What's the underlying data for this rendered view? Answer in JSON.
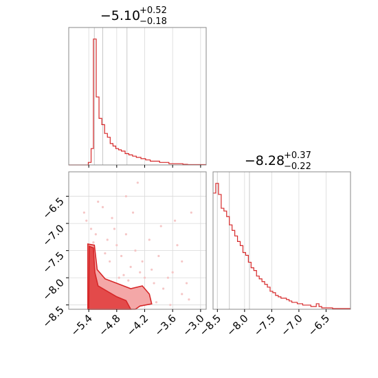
{
  "chart_data": [
    {
      "type": "histogram",
      "panel": "top-left",
      "title": {
        "value": "−5.10",
        "upper": "+0.52",
        "lower": "−0.18"
      },
      "xlim": [
        -5.83,
        -2.88
      ],
      "x_ticks": [
        -5.4,
        -4.8,
        -4.2,
        -3.6,
        -3.0
      ],
      "x_tick_labels": [
        "−5.4",
        "−4.8",
        "−4.2",
        "−3.6",
        "−3.0"
      ],
      "quantile_lines": [
        -5.28,
        -5.1,
        -4.58
      ],
      "bin_edges": [
        -5.83,
        -5.41,
        -5.35,
        -5.3,
        -5.24,
        -5.18,
        -5.12,
        -5.06,
        -5.0,
        -4.94,
        -4.88,
        -4.82,
        -4.76,
        -4.7,
        -4.62,
        -4.54,
        -4.46,
        -4.38,
        -4.28,
        -4.18,
        -4.08,
        -3.98,
        -3.88,
        -3.78,
        -3.68,
        -3.58,
        -3.48,
        -3.38,
        -3.28,
        -2.88
      ],
      "counts": [
        0,
        2,
        13,
        100,
        54,
        37,
        32,
        25,
        22,
        17,
        15,
        13,
        12,
        11,
        9,
        8,
        7,
        6,
        5,
        4,
        3,
        3,
        2,
        2,
        1,
        1,
        1,
        0.5,
        0.3
      ],
      "color": "#d62728"
    },
    {
      "type": "contour",
      "panel": "bottom-left",
      "xlim": [
        -5.83,
        -2.88
      ],
      "ylim": [
        -8.58,
        -6.05
      ],
      "x_ticks": [
        -5.4,
        -4.8,
        -4.2,
        -3.6,
        -3.0
      ],
      "x_tick_labels": [
        "−5.4",
        "−4.8",
        "−4.2",
        "−3.6",
        "−3.0"
      ],
      "y_ticks": [
        -6.5,
        -7.0,
        -7.5,
        -8.0,
        -8.5
      ],
      "y_tick_labels": [
        "−6.5",
        "−7.0",
        "−7.5",
        "−8.0",
        "−8.5"
      ],
      "inner_region": [
        [
          -5.39,
          -7.42
        ],
        [
          -5.3,
          -7.45
        ],
        [
          -5.27,
          -7.9
        ],
        [
          -5.2,
          -8.15
        ],
        [
          -5.0,
          -8.25
        ],
        [
          -4.8,
          -8.35
        ],
        [
          -4.6,
          -8.42
        ],
        [
          -4.5,
          -8.58
        ],
        [
          -5.4,
          -8.58
        ]
      ],
      "outer_region": [
        [
          -5.42,
          -7.38
        ],
        [
          -5.28,
          -7.4
        ],
        [
          -5.22,
          -7.85
        ],
        [
          -5.05,
          -8.02
        ],
        [
          -4.8,
          -8.1
        ],
        [
          -4.5,
          -8.2
        ],
        [
          -4.25,
          -8.15
        ],
        [
          -4.1,
          -8.3
        ],
        [
          -4.05,
          -8.48
        ],
        [
          -4.3,
          -8.52
        ],
        [
          -4.4,
          -8.58
        ],
        [
          -5.42,
          -8.58
        ]
      ],
      "scatter_points": [
        [
          -5.5,
          -6.8
        ],
        [
          -5.45,
          -6.95
        ],
        [
          -5.35,
          -7.1
        ],
        [
          -5.25,
          -7.2
        ],
        [
          -5.1,
          -6.7
        ],
        [
          -5.0,
          -7.3
        ],
        [
          -4.9,
          -6.9
        ],
        [
          -4.8,
          -7.4
        ],
        [
          -4.7,
          -7.6
        ],
        [
          -4.6,
          -7.2
        ],
        [
          -4.5,
          -7.8
        ],
        [
          -4.45,
          -6.8
        ],
        [
          -4.4,
          -7.5
        ],
        [
          -4.3,
          -7.9
        ],
        [
          -4.25,
          -7.7
        ],
        [
          -4.2,
          -8.0
        ],
        [
          -4.1,
          -7.3
        ],
        [
          -4.0,
          -8.1
        ],
        [
          -3.9,
          -7.6
        ],
        [
          -3.8,
          -8.2
        ],
        [
          -3.7,
          -8.0
        ],
        [
          -3.6,
          -7.9
        ],
        [
          -3.5,
          -7.4
        ],
        [
          -3.4,
          -8.3
        ],
        [
          -3.3,
          -8.1
        ],
        [
          -3.2,
          -6.8
        ],
        [
          -3.55,
          -6.95
        ],
        [
          -3.85,
          -7.05
        ],
        [
          -4.6,
          -6.5
        ],
        [
          -4.35,
          -6.25
        ],
        [
          -4.95,
          -7.7
        ],
        [
          -5.15,
          -7.95
        ],
        [
          -4.75,
          -8.0
        ],
        [
          -4.65,
          -7.95
        ],
        [
          -4.15,
          -8.4
        ],
        [
          -3.95,
          -8.45
        ],
        [
          -3.65,
          -8.5
        ],
        [
          -5.2,
          -6.6
        ],
        [
          -5.3,
          -7.35
        ],
        [
          -4.55,
          -8.05
        ],
        [
          -3.4,
          -7.7
        ],
        [
          -3.25,
          -8.4
        ],
        [
          -4.85,
          -7.1
        ],
        [
          -4.05,
          -7.85
        ],
        [
          -5.05,
          -7.55
        ]
      ],
      "colors": {
        "line": "#d62728",
        "fill_inner": "#e34a4a",
        "fill_outer": "#f4a7a7",
        "points": "#f5c6c6"
      }
    },
    {
      "type": "histogram",
      "panel": "bottom-right",
      "title": {
        "value": "−8.28",
        "upper": "+0.37",
        "lower": "−0.22"
      },
      "xlim": [
        -8.58,
        -6.05
      ],
      "x_ticks": [
        -8.5,
        -8.0,
        -7.5,
        -7.0,
        -6.5
      ],
      "x_tick_labels": [
        "−8.5",
        "−8.0",
        "−7.5",
        "−7.0",
        "−6.5"
      ],
      "quantile_lines": [
        -8.5,
        -8.28,
        -7.91
      ],
      "bin_edges": [
        -8.58,
        -8.53,
        -8.48,
        -8.43,
        -8.38,
        -8.33,
        -8.28,
        -8.23,
        -8.18,
        -8.13,
        -8.08,
        -8.03,
        -7.98,
        -7.93,
        -7.88,
        -7.83,
        -7.78,
        -7.73,
        -7.68,
        -7.63,
        -7.58,
        -7.53,
        -7.48,
        -7.43,
        -7.38,
        -7.33,
        -7.28,
        -7.23,
        -7.18,
        -7.13,
        -7.08,
        -7.03,
        -6.98,
        -6.93,
        -6.88,
        -6.83,
        -6.78,
        -6.73,
        -6.68,
        -6.63,
        -6.58,
        -6.53,
        -6.48,
        -6.43,
        -6.38,
        -6.33,
        -6.28,
        -6.23,
        -6.18,
        -6.13,
        -6.05
      ],
      "counts": [
        84,
        91,
        83,
        73,
        71,
        67,
        61,
        57,
        53,
        49,
        46,
        41,
        39,
        34,
        30,
        28,
        24,
        22,
        20,
        18,
        16,
        13,
        12,
        10,
        9,
        8,
        8,
        7,
        6,
        5,
        5,
        4,
        4,
        3,
        3,
        3,
        2,
        2,
        4,
        2,
        1,
        1,
        1,
        1,
        0.5,
        0.5,
        0.5,
        0.5,
        0.5,
        0.5
      ],
      "color": "#d62728"
    }
  ]
}
